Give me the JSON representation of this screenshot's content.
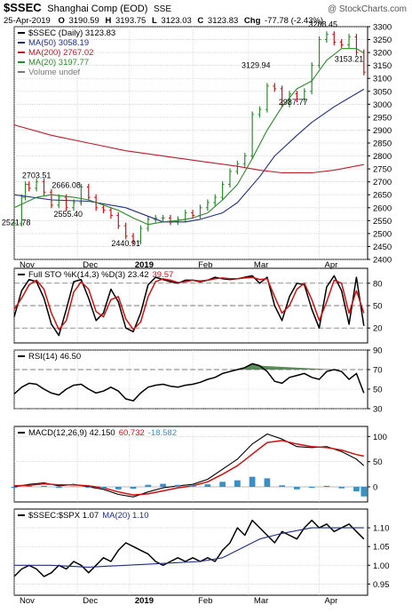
{
  "header": {
    "symbol": "$SSEC",
    "name": "Shanghai Comp (EOD)",
    "exchange": "SSE",
    "watermark": "@ StockCharts.com",
    "quote": {
      "date": "25-Apr-2019",
      "open_label": "O",
      "open": "3190.59",
      "high_label": "H",
      "high": "3193.75",
      "low_label": "L",
      "low": "3123.03",
      "close_label": "C",
      "close": "3123.83",
      "chg_label": "Chg",
      "chg": "-77.78 (-2.43%)"
    }
  },
  "colors": {
    "up": "#2e8b2e",
    "down": "#d01010",
    "price": "#000000",
    "ma50": "#1f2d8a",
    "ma200": "#c0182a",
    "ma20": "#2a8a2a",
    "sto_k": "#000000",
    "sto_d": "#d01010",
    "macd": "#000000",
    "signal": "#d01010",
    "histogram": "#3a8fc4",
    "ratio_ma": "#1f2d8a",
    "rsi_fill": "#3a7a3a"
  },
  "chart_data": [
    {
      "type": "line",
      "panel": "price",
      "legend": [
        {
          "label": "$SSEC (Daily) 3123.83",
          "color": "#000000"
        },
        {
          "label": "MA(50) 3058.19",
          "color": "#1f2d8a"
        },
        {
          "label": "MA(200) 2767.02",
          "color": "#c0182a"
        },
        {
          "label": "MA(20) 3197.77",
          "color": "#2a8a2a"
        },
        {
          "label": "Volume undef",
          "color": "#777777"
        }
      ],
      "x_labels": [
        "Nov",
        "Dec",
        "2019",
        "Feb",
        "Mar",
        "Apr"
      ],
      "ylim": [
        2400,
        3300
      ],
      "yticks": [
        2400,
        2450,
        2500,
        2550,
        2600,
        2650,
        2700,
        2750,
        2800,
        2850,
        2900,
        2950,
        3000,
        3050,
        3100,
        3150,
        3200,
        3250,
        3300
      ],
      "annotations": [
        {
          "label": "2521.78",
          "x": 0.5,
          "y": 2521.78
        },
        {
          "label": "2703.51",
          "x": 6,
          "y": 2703.51
        },
        {
          "label": "2666.08",
          "x": 14,
          "y": 2666.08
        },
        {
          "label": "2555.40",
          "x": 14.5,
          "y": 2555.4
        },
        {
          "label": "2440.91",
          "x": 30,
          "y": 2440.91
        },
        {
          "label": "3129.94",
          "x": 65,
          "y": 3129.94
        },
        {
          "label": "2987.77",
          "x": 75,
          "y": 2987.77
        },
        {
          "label": "3288.45",
          "x": 83,
          "y": 3288.45
        },
        {
          "label": "3153.21",
          "x": 90,
          "y": 3153.21
        }
      ],
      "series": [
        {
          "name": "$SSEC",
          "x": [
            0,
            2,
            3,
            4,
            6,
            8,
            10,
            12,
            14,
            16,
            18,
            20,
            22,
            24,
            26,
            28,
            30,
            32,
            34,
            36,
            38,
            40,
            42,
            44,
            46,
            48,
            50,
            52,
            54,
            56,
            58,
            60,
            62,
            64,
            66,
            68,
            70,
            72,
            74,
            76,
            78,
            80,
            82,
            84,
            86,
            88,
            90,
            92,
            94
          ],
          "values": [
            2540,
            2640,
            2690,
            2675,
            2700,
            2660,
            2610,
            2640,
            2600,
            2620,
            2680,
            2640,
            2600,
            2590,
            2570,
            2530,
            2490,
            2470,
            2520,
            2555,
            2560,
            2560,
            2545,
            2555,
            2580,
            2570,
            2600,
            2620,
            2640,
            2690,
            2740,
            2770,
            2800,
            2960,
            2980,
            3070,
            3060,
            3000,
            3040,
            3020,
            3050,
            3150,
            3250,
            3270,
            3240,
            3230,
            3260,
            3200,
            3124
          ]
        },
        {
          "name": "MA(50)",
          "x": [
            0,
            10,
            20,
            30,
            40,
            46,
            50,
            56,
            60,
            66,
            70,
            76,
            80,
            86,
            94
          ],
          "values": [
            2650,
            2630,
            2625,
            2600,
            2545,
            2545,
            2555,
            2580,
            2620,
            2720,
            2800,
            2880,
            2930,
            2990,
            3058
          ]
        },
        {
          "name": "MA(200)",
          "x": [
            0,
            10,
            20,
            30,
            40,
            50,
            60,
            66,
            72,
            80,
            86,
            94
          ],
          "values": [
            2920,
            2880,
            2850,
            2820,
            2800,
            2780,
            2760,
            2745,
            2735,
            2735,
            2745,
            2767
          ]
        },
        {
          "name": "MA(20)",
          "x": [
            0,
            6,
            10,
            16,
            20,
            24,
            28,
            32,
            36,
            40,
            44,
            48,
            52,
            56,
            60,
            64,
            68,
            72,
            76,
            80,
            84,
            88,
            92,
            94
          ],
          "values": [
            2600,
            2640,
            2650,
            2640,
            2630,
            2610,
            2590,
            2560,
            2535,
            2545,
            2550,
            2560,
            2580,
            2630,
            2690,
            2790,
            2900,
            2990,
            3060,
            3090,
            3170,
            3215,
            3215,
            3198
          ]
        }
      ]
    },
    {
      "type": "line",
      "panel": "stochastic",
      "legend": [
        {
          "label": "Full STO %K(14,3) %D(3) 23.42",
          "color": "#000000"
        },
        {
          "label": "39.57",
          "color": "#d01010"
        }
      ],
      "ylim": [
        0,
        100
      ],
      "yticks": [
        20,
        50,
        80
      ],
      "series": [
        {
          "name": "%K",
          "x": [
            0,
            2,
            4,
            6,
            8,
            10,
            12,
            14,
            16,
            18,
            20,
            22,
            24,
            26,
            28,
            30,
            32,
            34,
            36,
            38,
            40,
            42,
            44,
            46,
            48,
            50,
            52,
            54,
            56,
            58,
            60,
            62,
            64,
            66,
            68,
            70,
            72,
            74,
            76,
            78,
            80,
            82,
            84,
            86,
            88,
            90,
            92,
            94
          ],
          "values": [
            35,
            70,
            85,
            82,
            60,
            25,
            10,
            45,
            82,
            85,
            60,
            30,
            40,
            72,
            55,
            20,
            15,
            40,
            78,
            88,
            85,
            82,
            80,
            84,
            84,
            82,
            84,
            88,
            86,
            85,
            86,
            88,
            90,
            80,
            88,
            50,
            30,
            62,
            80,
            78,
            45,
            20,
            75,
            90,
            70,
            25,
            88,
            23
          ]
        },
        {
          "name": "%D",
          "x": [
            0,
            2,
            4,
            6,
            8,
            10,
            12,
            14,
            16,
            18,
            20,
            22,
            24,
            26,
            28,
            30,
            32,
            34,
            36,
            38,
            40,
            42,
            44,
            46,
            48,
            50,
            52,
            54,
            56,
            58,
            60,
            62,
            64,
            66,
            68,
            70,
            72,
            74,
            76,
            78,
            80,
            82,
            84,
            86,
            88,
            90,
            92,
            94
          ],
          "values": [
            45,
            60,
            78,
            84,
            72,
            40,
            18,
            30,
            68,
            82,
            72,
            42,
            35,
            58,
            62,
            32,
            18,
            28,
            62,
            82,
            86,
            84,
            81,
            82,
            84,
            83,
            84,
            86,
            87,
            86,
            86,
            87,
            88,
            85,
            86,
            62,
            40,
            50,
            72,
            80,
            58,
            30,
            55,
            84,
            80,
            40,
            70,
            40
          ]
        }
      ]
    },
    {
      "type": "line",
      "panel": "rsi",
      "legend": [
        {
          "label": "RSI(14) 46.50",
          "color": "#000000"
        }
      ],
      "ylim": [
        30,
        90
      ],
      "yticks": [
        30,
        50,
        70,
        90
      ],
      "series": [
        {
          "name": "RSI(14)",
          "x": [
            0,
            2,
            4,
            6,
            8,
            10,
            12,
            14,
            16,
            18,
            20,
            22,
            24,
            26,
            28,
            30,
            32,
            34,
            36,
            38,
            40,
            42,
            44,
            46,
            48,
            50,
            52,
            54,
            56,
            58,
            60,
            62,
            64,
            66,
            68,
            70,
            72,
            74,
            76,
            78,
            80,
            82,
            84,
            86,
            88,
            90,
            92,
            94
          ],
          "values": [
            45,
            52,
            56,
            55,
            50,
            46,
            44,
            50,
            54,
            55,
            50,
            46,
            48,
            52,
            48,
            40,
            38,
            46,
            52,
            54,
            55,
            53,
            52,
            54,
            55,
            57,
            60,
            62,
            66,
            68,
            70,
            72,
            76,
            74,
            68,
            58,
            56,
            62,
            64,
            66,
            62,
            60,
            68,
            70,
            68,
            60,
            66,
            46
          ]
        }
      ]
    },
    {
      "type": "line",
      "panel": "macd",
      "legend": [
        {
          "label": "MACD(12,26,9) 42.150",
          "color": "#000000"
        },
        {
          "label": "60.732",
          "color": "#d01010"
        },
        {
          "label": "-18.582",
          "color": "#3a8fc4"
        }
      ],
      "ylim": [
        -30,
        120
      ],
      "yticks": [
        0,
        50,
        100
      ],
      "series": [
        {
          "name": "MACD",
          "x": [
            0,
            4,
            8,
            12,
            16,
            20,
            24,
            28,
            32,
            36,
            40,
            44,
            48,
            52,
            56,
            60,
            64,
            68,
            72,
            76,
            80,
            84,
            88,
            92,
            94
          ],
          "values": [
            0,
            5,
            8,
            2,
            5,
            0,
            -5,
            -15,
            -20,
            -10,
            -2,
            2,
            5,
            15,
            35,
            55,
            85,
            105,
            95,
            80,
            78,
            80,
            70,
            55,
            42
          ]
        },
        {
          "name": "Signal",
          "x": [
            0,
            4,
            8,
            12,
            16,
            20,
            24,
            28,
            32,
            36,
            40,
            44,
            48,
            52,
            56,
            60,
            64,
            68,
            72,
            76,
            80,
            84,
            88,
            92,
            94
          ],
          "values": [
            2,
            3,
            6,
            4,
            4,
            2,
            -2,
            -10,
            -16,
            -14,
            -8,
            -2,
            2,
            10,
            25,
            42,
            65,
            88,
            92,
            85,
            80,
            78,
            73,
            64,
            61
          ]
        },
        {
          "name": "Histogram",
          "x": [
            0,
            4,
            8,
            12,
            16,
            20,
            24,
            28,
            32,
            36,
            40,
            44,
            48,
            52,
            56,
            60,
            64,
            68,
            72,
            76,
            80,
            84,
            88,
            92,
            94
          ],
          "values": [
            -2,
            2,
            2,
            -2,
            1,
            -2,
            -3,
            -5,
            -4,
            4,
            6,
            4,
            3,
            5,
            10,
            13,
            20,
            17,
            3,
            -5,
            -2,
            2,
            -3,
            -9,
            -19
          ]
        }
      ]
    },
    {
      "type": "line",
      "panel": "ratio",
      "legend": [
        {
          "label": "$SSEC:$SPX 1.07",
          "color": "#000000"
        },
        {
          "label": "MA(20) 1.10",
          "color": "#1f2d8a"
        }
      ],
      "ylim": [
        0.92,
        1.15
      ],
      "yticks": [
        0.95,
        1.0,
        1.05,
        1.1
      ],
      "series": [
        {
          "name": "$SSEC:$SPX",
          "x": [
            0,
            2,
            4,
            6,
            8,
            10,
            12,
            14,
            16,
            18,
            20,
            22,
            24,
            26,
            28,
            30,
            32,
            34,
            36,
            38,
            40,
            42,
            44,
            46,
            48,
            50,
            52,
            54,
            56,
            58,
            60,
            62,
            64,
            66,
            68,
            70,
            72,
            74,
            76,
            78,
            80,
            82,
            84,
            86,
            88,
            90,
            92,
            94
          ],
          "values": [
            0.97,
            0.99,
            1.0,
            0.99,
            0.97,
            0.98,
            1.0,
            0.99,
            1.01,
            1.0,
            0.98,
            1.0,
            1.02,
            1.01,
            1.04,
            1.06,
            1.05,
            1.04,
            1.03,
            1.01,
            1.0,
            1.01,
            1.02,
            1.01,
            1.02,
            1.01,
            1.02,
            1.01,
            1.04,
            1.06,
            1.1,
            1.08,
            1.12,
            1.1,
            1.08,
            1.06,
            1.09,
            1.08,
            1.07,
            1.1,
            1.12,
            1.1,
            1.11,
            1.09,
            1.1,
            1.11,
            1.09,
            1.07
          ]
        },
        {
          "name": "MA(20)",
          "x": [
            0,
            10,
            20,
            30,
            40,
            50,
            56,
            60,
            66,
            72,
            80,
            86,
            94
          ],
          "values": [
            1.0,
            1.0,
            0.995,
            1.0,
            1.005,
            1.01,
            1.02,
            1.04,
            1.07,
            1.085,
            1.1,
            1.1,
            1.1
          ]
        }
      ]
    }
  ]
}
